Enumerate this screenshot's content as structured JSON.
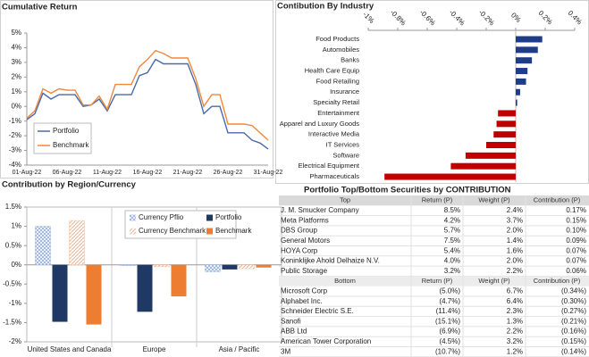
{
  "chart_data": [
    {
      "type": "line",
      "title": "Cumulative Return",
      "categories": [
        "01-Aug-22",
        null,
        null,
        null,
        null,
        "06-Aug-22",
        null,
        null,
        null,
        null,
        "11-Aug-22",
        null,
        null,
        null,
        null,
        "16-Aug-22",
        null,
        null,
        null,
        null,
        "21-Aug-22",
        null,
        null,
        null,
        null,
        "26-Aug-22",
        null,
        null,
        null,
        null,
        "31-Aug-22"
      ],
      "series": [
        {
          "name": "Portfolio",
          "color": "#4a6aa8",
          "values": [
            -0.9,
            -0.5,
            0.9,
            0.5,
            0.8,
            0.8,
            0.8,
            0.0,
            0.1,
            0.5,
            -0.3,
            0.8,
            0.8,
            0.8,
            2.1,
            2.3,
            3.2,
            2.9,
            2.9,
            2.9,
            2.9,
            1.5,
            -0.5,
            0.0,
            0.0,
            -1.8,
            -1.8,
            -1.8,
            -2.3,
            -2.5,
            -2.9
          ]
        },
        {
          "name": "Benchmark",
          "color": "#f0883e",
          "values": [
            -0.8,
            -0.3,
            1.2,
            0.9,
            1.2,
            1.1,
            1.1,
            0.1,
            0.1,
            0.7,
            -0.2,
            1.5,
            1.5,
            1.5,
            2.7,
            3.2,
            3.8,
            3.6,
            3.3,
            3.3,
            3.3,
            1.9,
            0.0,
            0.8,
            0.8,
            -1.2,
            -1.2,
            -1.2,
            -1.3,
            -1.8,
            -2.3
          ]
        }
      ],
      "ylim": [
        -4,
        5
      ],
      "yticks": [
        {
          "value": 5,
          "label": "5%"
        },
        {
          "value": 4,
          "label": "4%"
        },
        {
          "value": 3,
          "label": "3%"
        },
        {
          "value": 2,
          "label": "2%"
        },
        {
          "value": 1,
          "label": "1%"
        },
        {
          "value": 0,
          "label": "0%"
        },
        {
          "value": -1,
          "label": "-1%"
        },
        {
          "value": -2,
          "label": "-2%"
        },
        {
          "value": -3,
          "label": "-3%"
        },
        {
          "value": -4,
          "label": "-4%"
        }
      ],
      "grid": false,
      "legend": "lower left"
    },
    {
      "type": "hbar",
      "title": "Contibution By Industry",
      "categories": [
        "Food Products",
        "Automobiles",
        "Banks",
        "Health Care Equip",
        "Food  Retailing",
        "Insurance",
        "Specialty Retail",
        "Entertainment",
        "Apparel and Luxury Goods",
        "Interactive Media",
        "IT Services",
        "Software",
        "Electrical Equipment",
        "Pharmaceuticals"
      ],
      "values": [
        0.18,
        0.15,
        0.11,
        0.08,
        0.07,
        0.03,
        0.01,
        -0.12,
        -0.13,
        -0.15,
        -0.2,
        -0.34,
        -0.44,
        -0.89
      ],
      "colors": [
        "#1f3c88",
        "#1f3c88",
        "#1f3c88",
        "#1f3c88",
        "#1f3c88",
        "#1f3c88",
        "#1f3c88",
        "#c00000",
        "#c00000",
        "#c00000",
        "#c00000",
        "#c00000",
        "#c00000",
        "#c00000"
      ],
      "xlim": [
        -1.0,
        0.4
      ],
      "xticks": [
        {
          "value": -1,
          "label": "-1%"
        },
        {
          "value": -0.8,
          "label": "-0.8%"
        },
        {
          "value": -0.6,
          "label": "-0.6%"
        },
        {
          "value": -0.4,
          "label": "-0.4%"
        },
        {
          "value": -0.2,
          "label": "-0.2%"
        },
        {
          "value": 0,
          "label": "0%"
        },
        {
          "value": 0.2,
          "label": "0.2%"
        },
        {
          "value": 0.4,
          "label": "0.4%"
        }
      ]
    },
    {
      "type": "bar",
      "title": "Contribution by Region/Currency",
      "categories": [
        "United States and Canada",
        "Europe",
        "Asia / Pacific"
      ],
      "series": [
        {
          "name": "Currency Pflio",
          "color": "#8ea9db",
          "hatch": true,
          "values": [
            1.0,
            -0.02,
            -0.18
          ]
        },
        {
          "name": "Portfolio",
          "color": "#1f3864",
          "hatch": false,
          "values": [
            -1.48,
            -1.22,
            -0.12
          ]
        },
        {
          "name": "Currency Benchmark",
          "color": "#f4b183",
          "hatch": true,
          "values": [
            1.15,
            -0.05,
            -0.1
          ]
        },
        {
          "name": "Benchmark",
          "color": "#ed7d31",
          "hatch": false,
          "values": [
            -1.55,
            -0.82,
            -0.07
          ]
        }
      ],
      "ylim": [
        -2,
        1.5
      ],
      "yticks": [
        {
          "value": 1.5,
          "label": "1.5%"
        },
        {
          "value": 1,
          "label": "1%"
        },
        {
          "value": 0.5,
          "label": "0.5%"
        },
        {
          "value": 0,
          "label": "0%"
        },
        {
          "value": -0.5,
          "label": "-0.5%"
        },
        {
          "value": -1,
          "label": "-1%"
        },
        {
          "value": -1.5,
          "label": "-1.5%"
        },
        {
          "value": -2,
          "label": "-2%"
        }
      ],
      "legend": "upper right"
    }
  ],
  "table": {
    "title": "Portfolio Top/Bottom Securities by CONTRIBUTION",
    "top_header": [
      "Top",
      "Return (P)",
      "Weight (P)",
      "Contribution (P)"
    ],
    "top_rows": [
      [
        "J. M. Smucker Company",
        "8.5%",
        "2.4%",
        "0.17%"
      ],
      [
        "Meta Platforms",
        "4.2%",
        "3.7%",
        "0.15%"
      ],
      [
        "DBS Group",
        "5.7%",
        "2.0%",
        "0.10%"
      ],
      [
        "General Motors",
        "7.5%",
        "1.4%",
        "0.09%"
      ],
      [
        "HOYA Corp",
        "5.4%",
        "1.6%",
        "0.07%"
      ],
      [
        "Koninklijke Ahold Delhaize N.V.",
        "4.0%",
        "2.0%",
        "0.07%"
      ],
      [
        "Public Storage",
        "3.2%",
        "2.2%",
        "0.06%"
      ]
    ],
    "bottom_header": [
      "Bottom",
      "Return (P)",
      "Weight (P)",
      "Contribution (P)"
    ],
    "bottom_rows": [
      [
        "Microsoft Corp",
        "(5.0%)",
        "6.7%",
        "(0.34%)"
      ],
      [
        "Alphabet Inc.",
        "(4.7%)",
        "6.4%",
        "(0.30%)"
      ],
      [
        "Schneider Electric S.E.",
        "(11.4%)",
        "2.3%",
        "(0.27%)"
      ],
      [
        "Sanofi",
        "(15.1%)",
        "1.3%",
        "(0.21%)"
      ],
      [
        "ABB Ltd",
        "(6.9%)",
        "2.2%",
        "(0.16%)"
      ],
      [
        "American Tower Corporation",
        "(4.5%)",
        "3.2%",
        "(0.15%)"
      ],
      [
        "3M",
        "(10.7%)",
        "1.2%",
        "(0.14%)"
      ]
    ]
  }
}
